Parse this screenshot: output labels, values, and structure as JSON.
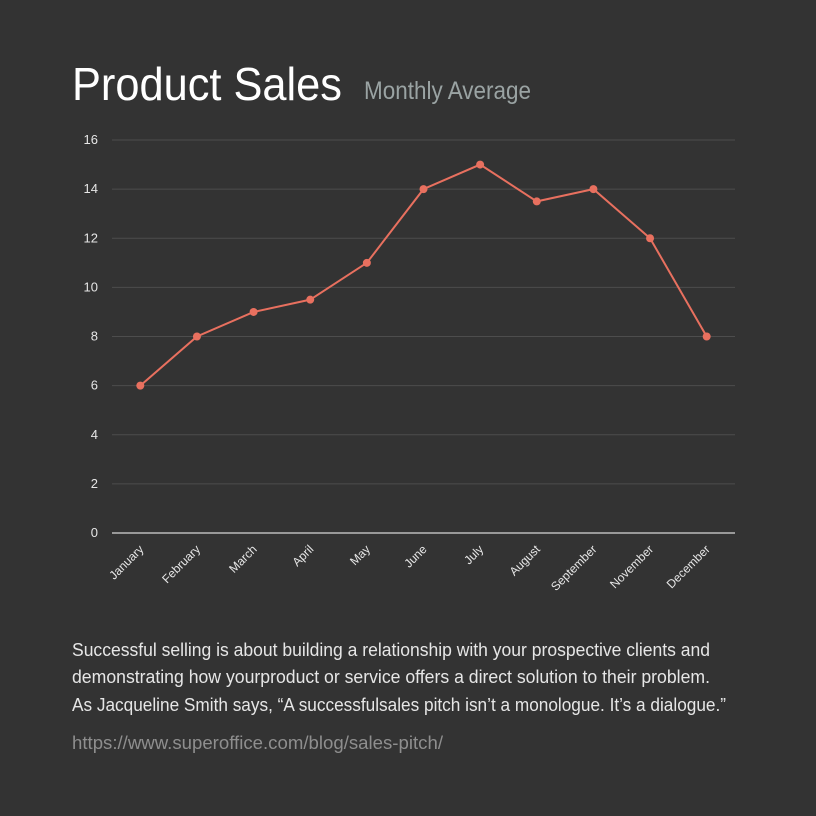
{
  "chart_data": {
    "type": "line",
    "title": "Product Sales",
    "subtitle": "Monthly Average",
    "categories": [
      "January",
      "February",
      "March",
      "April",
      "May",
      "June",
      "July",
      "August",
      "September",
      "November",
      "December"
    ],
    "values": [
      6,
      8,
      9,
      9.5,
      11,
      14,
      15,
      13.5,
      14,
      12,
      8
    ],
    "color": "#e8705f",
    "ylim": [
      0,
      16
    ],
    "yticks": [
      0,
      2,
      4,
      6,
      8,
      10,
      12,
      14,
      16
    ],
    "grid": true
  },
  "description": [
    "Successful selling is about building a relationship with your prospective clients and",
    "demonstrating how yourproduct or service offers a direct solution to their problem.",
    "As Jacqueline Smith says, “A successfulsales pitch isn’t a monologue. It’s a dialogue.”"
  ],
  "source": "https://www.superoffice.com/blog/sales-pitch/"
}
